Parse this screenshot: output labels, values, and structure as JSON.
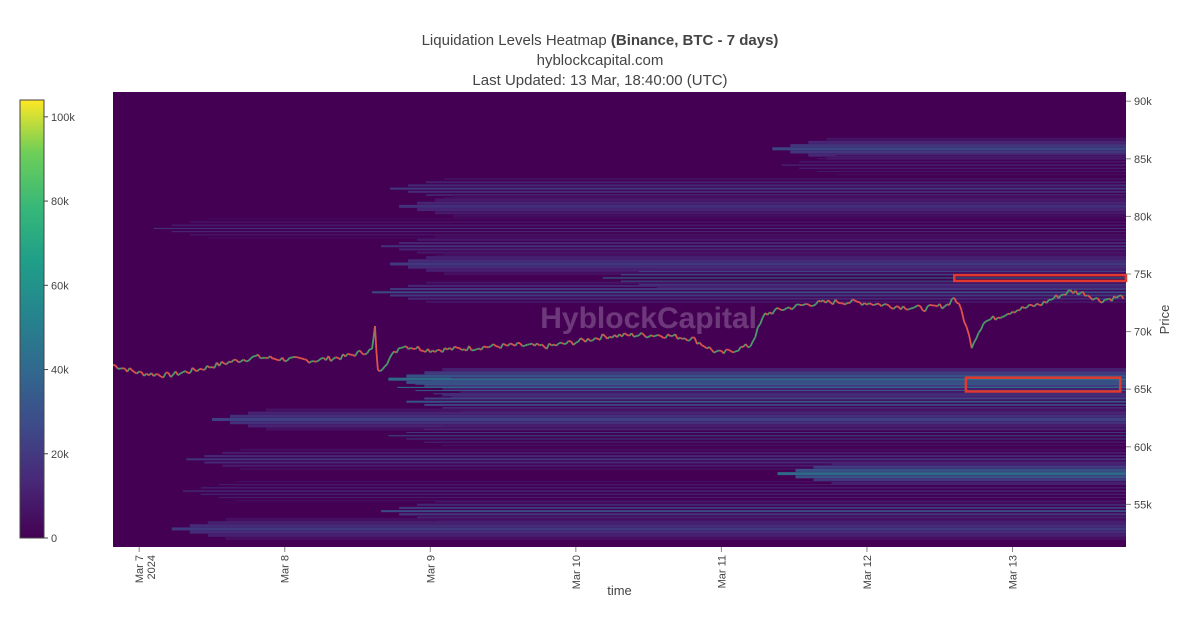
{
  "header": {
    "title_prefix": "Liquidation Levels Heatmap ",
    "title_bold": "(Binance, BTC - 7 days)",
    "subtitle": "hyblockcapital.com",
    "updated": "Last Updated: 13 Mar, 18:40:00 (UTC)"
  },
  "watermark": "HyblockCapital",
  "chart_data": {
    "type": "heatmap",
    "xlabel": "time",
    "ylabel": "Price",
    "x_ticks": [
      {
        "day": 0,
        "label": "Mar 7",
        "label2": "2024"
      },
      {
        "day": 1,
        "label": "Mar 8"
      },
      {
        "day": 2,
        "label": "Mar 9"
      },
      {
        "day": 3,
        "label": "Mar 10"
      },
      {
        "day": 4,
        "label": "Mar 11"
      },
      {
        "day": 5,
        "label": "Mar 12"
      },
      {
        "day": 6,
        "label": "Mar 13"
      }
    ],
    "x_range_days": [
      -0.18,
      6.78
    ],
    "y_ticks": [
      {
        "v": 55000,
        "label": "55k"
      },
      {
        "v": 60000,
        "label": "60k"
      },
      {
        "v": 65000,
        "label": "65k"
      },
      {
        "v": 70000,
        "label": "70k"
      },
      {
        "v": 75000,
        "label": "75k"
      },
      {
        "v": 80000,
        "label": "80k"
      },
      {
        "v": 85000,
        "label": "85k"
      },
      {
        "v": 90000,
        "label": "90k"
      }
    ],
    "ylim": [
      51300,
      90800
    ],
    "colorbar": {
      "range": [
        0,
        104000
      ],
      "ticks": [
        {
          "v": 0,
          "label": "0"
        },
        {
          "v": 20000,
          "label": "20k"
        },
        {
          "v": 40000,
          "label": "40k"
        },
        {
          "v": 60000,
          "label": "60k"
        },
        {
          "v": 80000,
          "label": "80k"
        },
        {
          "v": 100000,
          "label": "100k"
        }
      ],
      "colorscale": "viridis"
    },
    "price_series": [
      [
        -0.18,
        67100
      ],
      [
        0,
        66400
      ],
      [
        0.2,
        66200
      ],
      [
        0.4,
        66700
      ],
      [
        0.6,
        67300
      ],
      [
        0.8,
        67800
      ],
      [
        1.0,
        67600
      ],
      [
        1.2,
        67500
      ],
      [
        1.4,
        67800
      ],
      [
        1.6,
        68400
      ],
      [
        1.62,
        70300
      ],
      [
        1.64,
        66500
      ],
      [
        1.8,
        68800
      ],
      [
        2.0,
        68400
      ],
      [
        2.2,
        68500
      ],
      [
        2.4,
        68700
      ],
      [
        2.6,
        68800
      ],
      [
        2.8,
        68700
      ],
      [
        3.0,
        69100
      ],
      [
        3.2,
        69600
      ],
      [
        3.4,
        69700
      ],
      [
        3.6,
        69700
      ],
      [
        3.8,
        69400
      ],
      [
        3.95,
        68300
      ],
      [
        4.0,
        68100
      ],
      [
        4.2,
        68800
      ],
      [
        4.3,
        71500
      ],
      [
        4.4,
        71900
      ],
      [
        4.6,
        72400
      ],
      [
        4.8,
        72600
      ],
      [
        5.0,
        72500
      ],
      [
        5.2,
        72200
      ],
      [
        5.4,
        72000
      ],
      [
        5.55,
        72300
      ],
      [
        5.6,
        73000
      ],
      [
        5.65,
        71800
      ],
      [
        5.72,
        68800
      ],
      [
        5.8,
        70800
      ],
      [
        6.0,
        71800
      ],
      [
        6.2,
        72400
      ],
      [
        6.3,
        73000
      ],
      [
        6.4,
        73500
      ],
      [
        6.5,
        73300
      ],
      [
        6.6,
        72700
      ],
      [
        6.78,
        73100
      ]
    ],
    "liquidation_bands": [
      {
        "price": 86000,
        "start_day": 4.35,
        "intensity": 28000
      },
      {
        "price": 84500,
        "start_day": 4.35,
        "intensity": 18000
      },
      {
        "price": 82500,
        "start_day": 1.6,
        "intensity": 22000
      },
      {
        "price": 81000,
        "start_day": 1.6,
        "intensity": 18000
      },
      {
        "price": 79000,
        "start_day": 0.1,
        "intensity": 20000
      },
      {
        "price": 77500,
        "start_day": 1.6,
        "intensity": 18000
      },
      {
        "price": 76000,
        "start_day": 1.6,
        "intensity": 22000
      },
      {
        "price": 74700,
        "start_day": 3.0,
        "intensity": 50000
      },
      {
        "price": 73500,
        "start_day": 1.6,
        "intensity": 30000
      },
      {
        "price": 66000,
        "start_day": 1.65,
        "intensity": 45000
      },
      {
        "price": 65200,
        "start_day": 1.65,
        "intensity": 50000
      },
      {
        "price": 64000,
        "start_day": 1.65,
        "intensity": 35000
      },
      {
        "price": 62500,
        "start_day": 0.5,
        "intensity": 25000
      },
      {
        "price": 61000,
        "start_day": 1.65,
        "intensity": 30000
      },
      {
        "price": 59000,
        "start_day": 0.2,
        "intensity": 20000
      },
      {
        "price": 57800,
        "start_day": 4.2,
        "intensity": 45000
      },
      {
        "price": 56200,
        "start_day": 0.3,
        "intensity": 22000
      },
      {
        "price": 54500,
        "start_day": 1.6,
        "intensity": 30000
      },
      {
        "price": 53000,
        "start_day": 0.1,
        "intensity": 22000
      }
    ],
    "highlight_boxes": [
      {
        "day_start": 5.6,
        "day_end": 6.78,
        "price_low": 74400,
        "price_high": 74900,
        "color": "#e03a2f"
      },
      {
        "day_start": 5.68,
        "day_end": 6.74,
        "price_low": 64800,
        "price_high": 66000,
        "color": "#e03a2f"
      }
    ],
    "colors": {
      "background_cell": "#440154",
      "price_up": "#4a9a6a",
      "price_down": "#e0524a",
      "highlight": "#e03a2f"
    }
  }
}
